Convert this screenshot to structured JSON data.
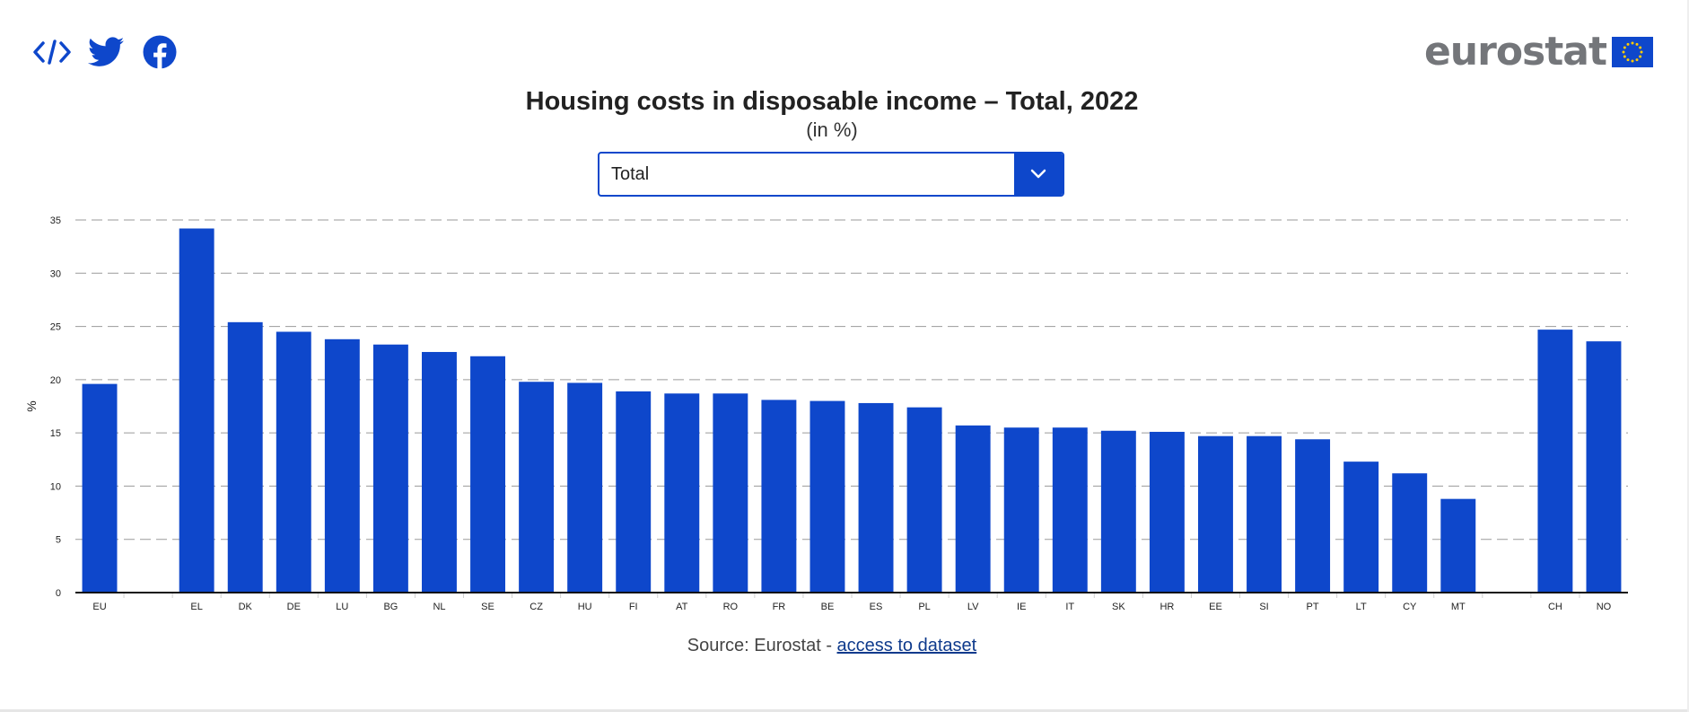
{
  "share": {
    "icons": [
      "embed-icon",
      "twitter-icon",
      "facebook-icon"
    ]
  },
  "brand": {
    "logo_text": "eurostat"
  },
  "header": {
    "title": "Housing costs in disposable income – Total, 2022",
    "subtitle": "(in %)"
  },
  "dropdown": {
    "selected": "Total",
    "icon": "chevron-down-icon"
  },
  "source": {
    "prefix": "Source: Eurostat - ",
    "link_text": "access to dataset"
  },
  "colors": {
    "accent": "#0e47cb",
    "bar": "#0e47cb",
    "logo_grey": "#74767a",
    "flag_star": "#ffcc00"
  },
  "chart_data": {
    "type": "bar",
    "title": "Housing costs in disposable income – Total, 2022",
    "subtitle": "(in %)",
    "ylabel": "%",
    "xlabel": "",
    "ylim": [
      0,
      35
    ],
    "yticks": [
      0,
      5,
      10,
      15,
      20,
      25,
      30,
      35
    ],
    "grid": "horizontal dashed",
    "categories": [
      "EU",
      "",
      "EL",
      "DK",
      "DE",
      "LU",
      "BG",
      "NL",
      "SE",
      "CZ",
      "HU",
      "FI",
      "AT",
      "RO",
      "FR",
      "BE",
      "ES",
      "PL",
      "LV",
      "IE",
      "IT",
      "SK",
      "HR",
      "EE",
      "SI",
      "PT",
      "LT",
      "CY",
      "MT",
      "",
      "CH",
      "NO"
    ],
    "values": [
      19.6,
      null,
      34.2,
      25.4,
      24.5,
      23.8,
      23.3,
      22.6,
      22.2,
      19.8,
      19.7,
      18.9,
      18.7,
      18.7,
      18.1,
      18.0,
      17.8,
      17.4,
      15.7,
      15.5,
      15.5,
      15.2,
      15.1,
      14.7,
      14.7,
      14.4,
      12.3,
      11.2,
      8.8,
      null,
      24.7,
      23.6
    ]
  }
}
